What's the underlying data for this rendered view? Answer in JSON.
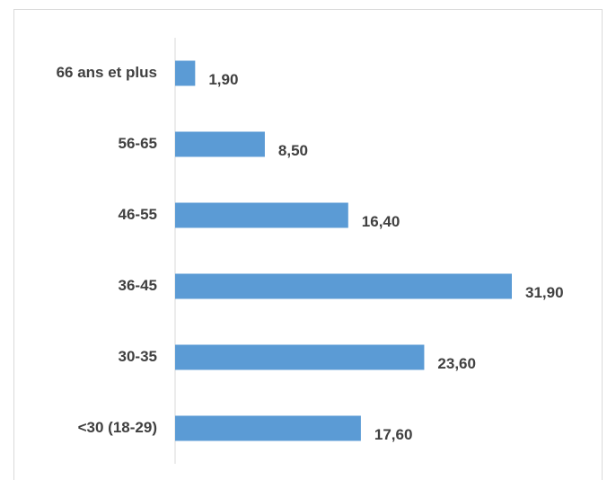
{
  "chart_data": {
    "type": "bar",
    "orientation": "horizontal",
    "categories": [
      "66 ans et plus",
      "56-65",
      "46-55",
      "36-45",
      "30-35",
      "<30 (18-29)"
    ],
    "values": [
      1.9,
      8.5,
      16.4,
      31.9,
      23.6,
      17.6
    ],
    "value_labels": [
      "1,90",
      "8,50",
      "16,40",
      "31,90",
      "23,60",
      "17,60"
    ],
    "color": "#5b9bd5"
  }
}
